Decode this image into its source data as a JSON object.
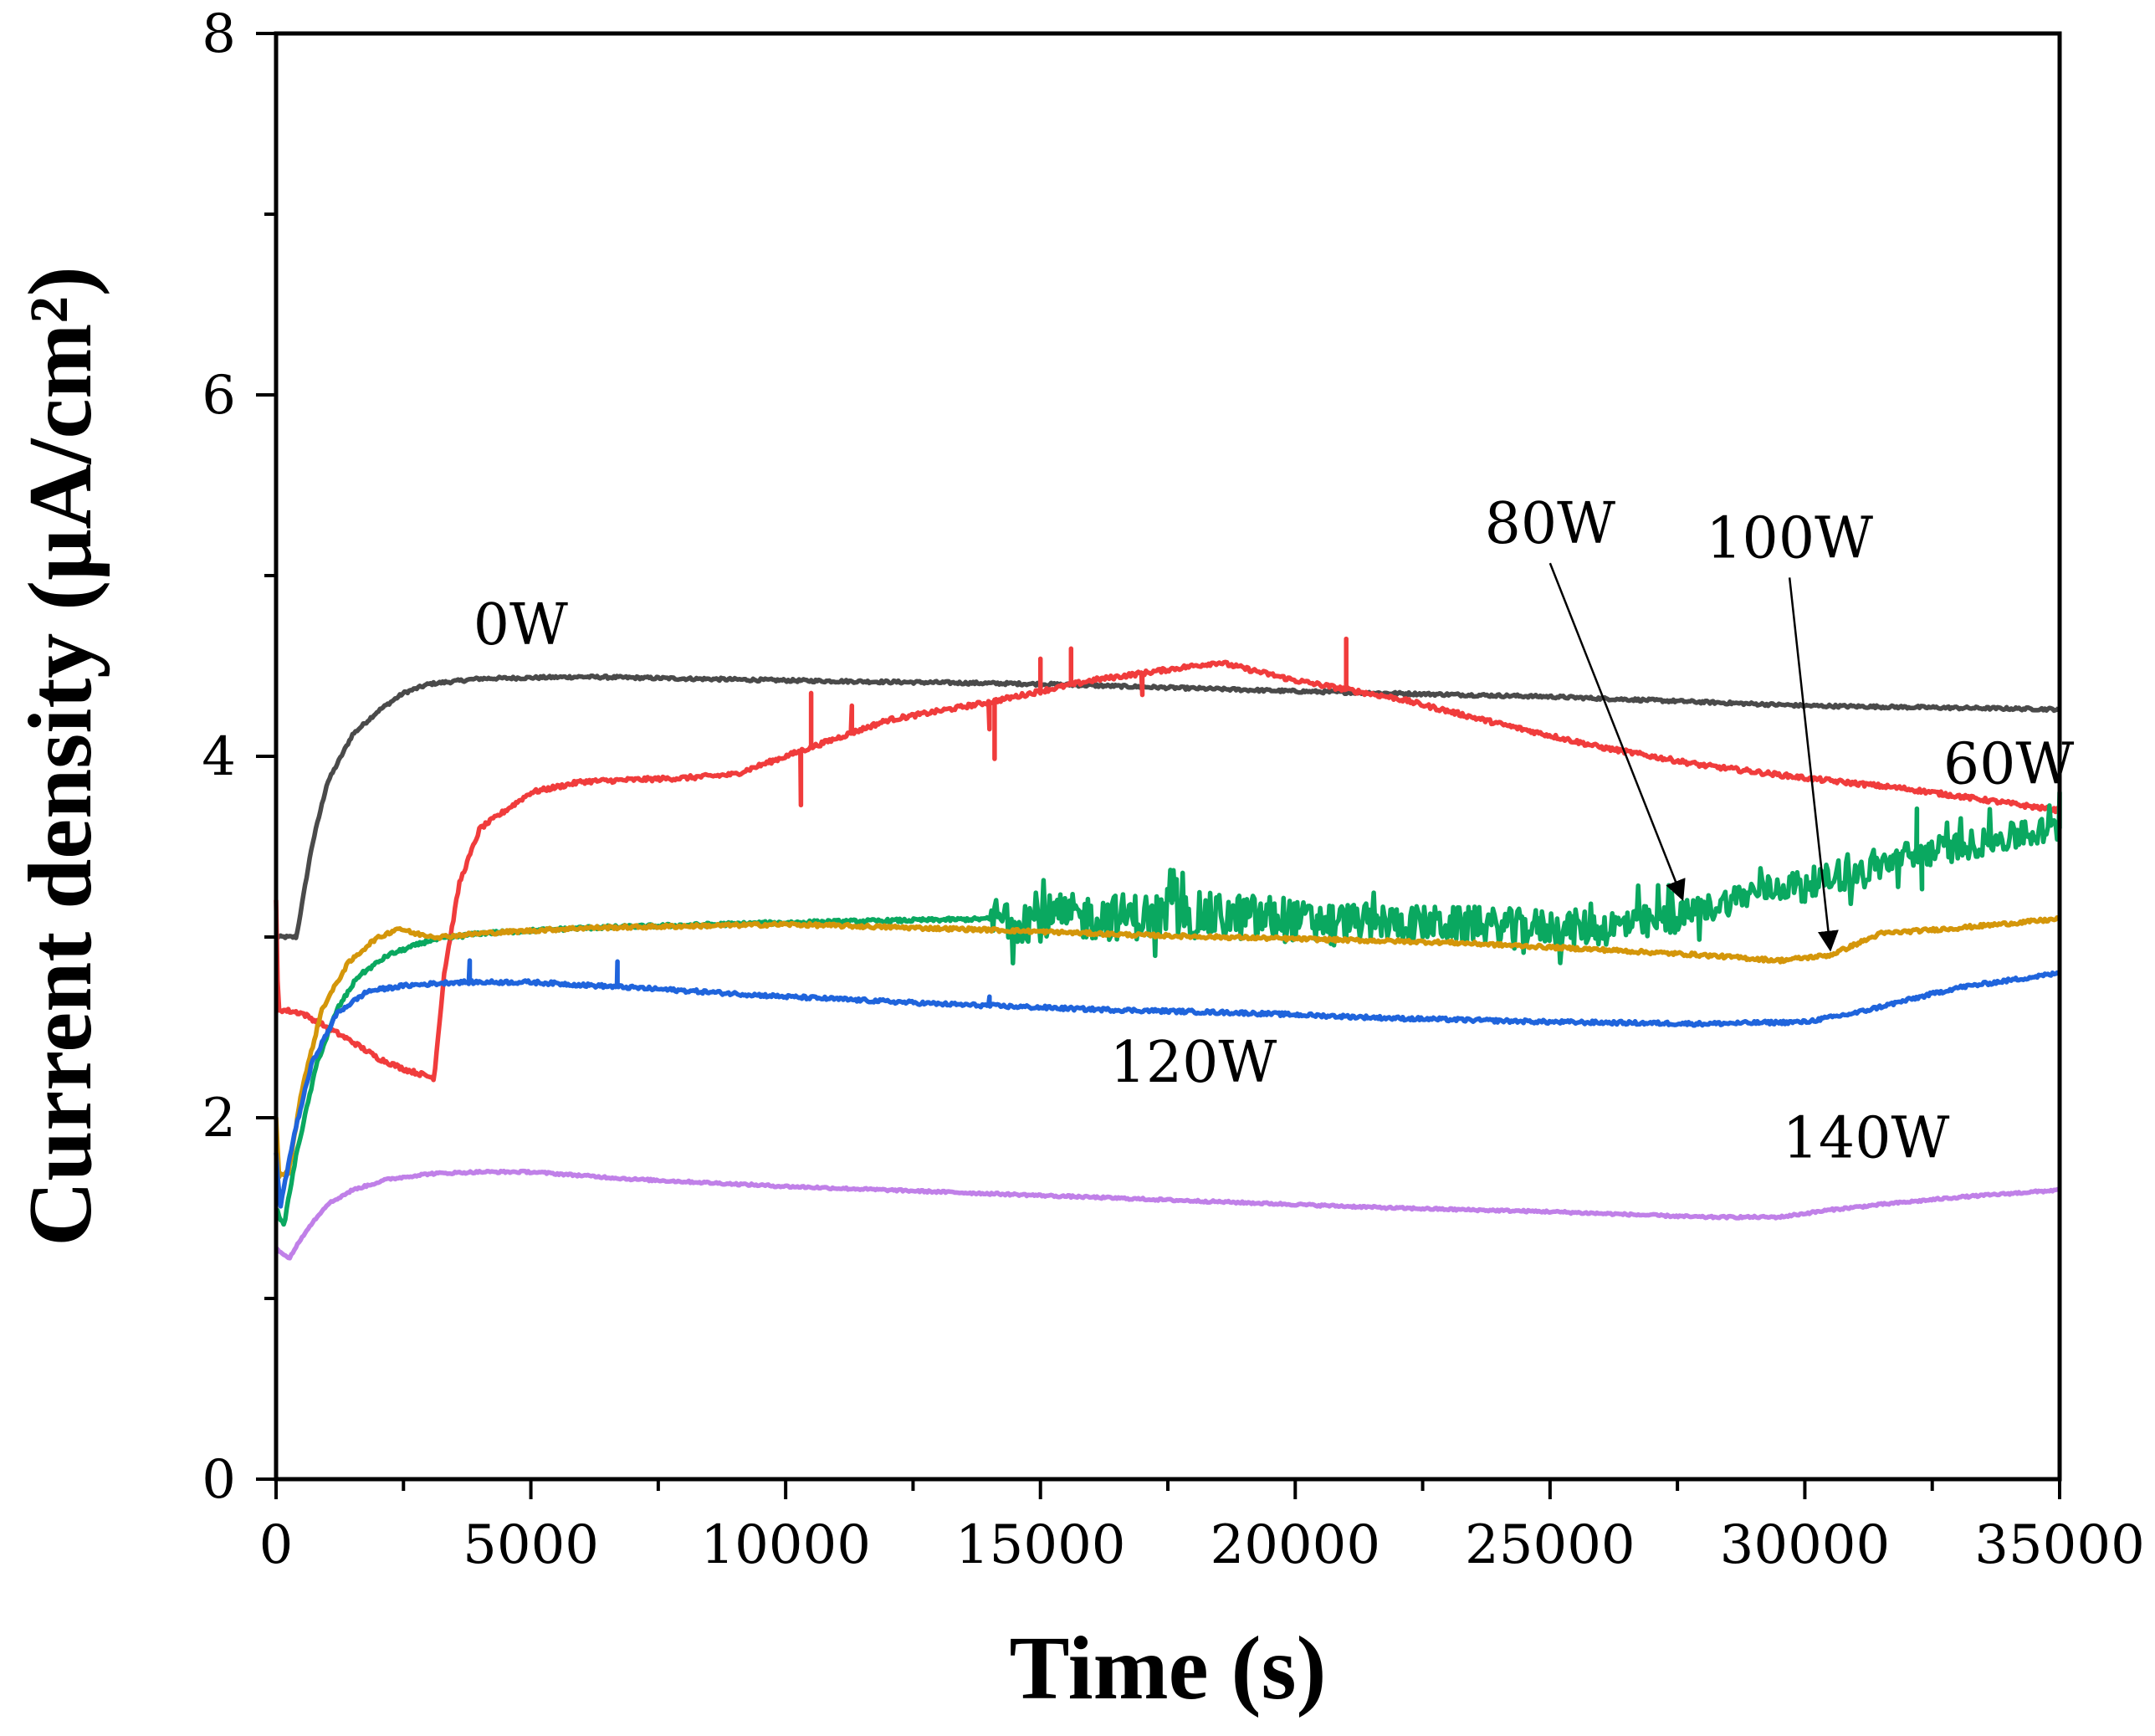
{
  "chart_data": {
    "type": "line",
    "title": "",
    "xlabel": "Time (s)",
    "ylabel": "Current density (μA/cm²)",
    "xlim": [
      0,
      35000
    ],
    "ylim": [
      0,
      8
    ],
    "xticks": [
      0,
      5000,
      10000,
      15000,
      20000,
      25000,
      30000,
      35000
    ],
    "yticks": [
      0,
      2,
      4,
      6,
      8
    ],
    "grid": false,
    "series": [
      {
        "name": "0W",
        "color": "#4a4a4a",
        "noise": 0.008,
        "points": [
          [
            0,
            3.0
          ],
          [
            400,
            3.0
          ],
          [
            700,
            3.5
          ],
          [
            1000,
            3.85
          ],
          [
            1500,
            4.12
          ],
          [
            2000,
            4.25
          ],
          [
            2500,
            4.35
          ],
          [
            3000,
            4.4
          ],
          [
            4000,
            4.43
          ],
          [
            6000,
            4.44
          ],
          [
            10000,
            4.42
          ],
          [
            15000,
            4.4
          ],
          [
            20000,
            4.36
          ],
          [
            25000,
            4.33
          ],
          [
            30000,
            4.28
          ],
          [
            35000,
            4.26
          ]
        ]
      },
      {
        "name": "60W",
        "color": "#f03c3c",
        "noise": 0.012,
        "points": [
          [
            0,
            3.2
          ],
          [
            40,
            2.6
          ],
          [
            500,
            2.58
          ],
          [
            1000,
            2.5
          ],
          [
            1500,
            2.42
          ],
          [
            2000,
            2.33
          ],
          [
            2500,
            2.27
          ],
          [
            3100,
            2.22
          ],
          [
            3300,
            2.8
          ],
          [
            3600,
            3.3
          ],
          [
            4000,
            3.6
          ],
          [
            5000,
            3.8
          ],
          [
            6000,
            3.86
          ],
          [
            7000,
            3.87
          ],
          [
            8000,
            3.88
          ],
          [
            9000,
            3.9
          ],
          [
            10000,
            4.0
          ],
          [
            12000,
            4.2
          ],
          [
            14000,
            4.3
          ],
          [
            16000,
            4.42
          ],
          [
            18500,
            4.52
          ],
          [
            20000,
            4.42
          ],
          [
            22000,
            4.32
          ],
          [
            24000,
            4.18
          ],
          [
            26000,
            4.05
          ],
          [
            28000,
            3.95
          ],
          [
            30000,
            3.88
          ],
          [
            32000,
            3.82
          ],
          [
            35000,
            3.7
          ]
        ],
        "spikes": [
          [
            10300,
            -0.3
          ],
          [
            10500,
            0.3
          ],
          [
            11300,
            0.15
          ],
          [
            14000,
            -0.15
          ],
          [
            14100,
            -0.32
          ],
          [
            15000,
            0.18
          ],
          [
            15600,
            0.2
          ],
          [
            17000,
            -0.12
          ],
          [
            21000,
            0.28
          ]
        ]
      },
      {
        "name": "80W",
        "color": "#0aa860",
        "noise": 0.01,
        "points": [
          [
            0,
            1.5
          ],
          [
            150,
            1.4
          ],
          [
            400,
            1.8
          ],
          [
            800,
            2.3
          ],
          [
            1200,
            2.6
          ],
          [
            1600,
            2.78
          ],
          [
            2200,
            2.9
          ],
          [
            3000,
            2.98
          ],
          [
            4000,
            3.02
          ],
          [
            6000,
            3.05
          ],
          [
            10000,
            3.08
          ],
          [
            14000,
            3.1
          ],
          [
            18000,
            3.12
          ],
          [
            20000,
            3.1
          ],
          [
            22000,
            3.08
          ],
          [
            24000,
            3.06
          ],
          [
            26000,
            3.05
          ],
          [
            27000,
            3.08
          ],
          [
            28000,
            3.15
          ],
          [
            29000,
            3.25
          ],
          [
            30000,
            3.3
          ],
          [
            31000,
            3.35
          ],
          [
            32000,
            3.45
          ],
          [
            33000,
            3.5
          ],
          [
            35000,
            3.6
          ]
        ],
        "noiseBands": [
          [
            14000,
            20000,
            0.13
          ],
          [
            20000,
            27500,
            0.1
          ],
          [
            27500,
            35000,
            0.08
          ]
        ],
        "spikes": [
          [
            32200,
            0.25
          ],
          [
            32300,
            -0.2
          ],
          [
            35000,
            0.2
          ]
        ]
      },
      {
        "name": "100W",
        "color": "#d4960a",
        "noise": 0.01,
        "points": [
          [
            0,
            2.0
          ],
          [
            60,
            1.68
          ],
          [
            250,
            1.7
          ],
          [
            500,
            2.15
          ],
          [
            900,
            2.6
          ],
          [
            1400,
            2.85
          ],
          [
            1900,
            2.98
          ],
          [
            2400,
            3.05
          ],
          [
            2700,
            3.02
          ],
          [
            3200,
            3.0
          ],
          [
            4000,
            3.02
          ],
          [
            6000,
            3.05
          ],
          [
            10000,
            3.07
          ],
          [
            14000,
            3.04
          ],
          [
            17000,
            3.01
          ],
          [
            20000,
            2.99
          ],
          [
            23000,
            2.97
          ],
          [
            26000,
            2.93
          ],
          [
            28000,
            2.9
          ],
          [
            29500,
            2.87
          ],
          [
            30500,
            2.9
          ],
          [
            31500,
            3.02
          ],
          [
            33000,
            3.05
          ],
          [
            35000,
            3.1
          ]
        ]
      },
      {
        "name": "120W",
        "color": "#1f64dc",
        "noise": 0.01,
        "points": [
          [
            0,
            1.8
          ],
          [
            80,
            1.5
          ],
          [
            350,
            1.9
          ],
          [
            700,
            2.3
          ],
          [
            1200,
            2.58
          ],
          [
            1800,
            2.7
          ],
          [
            2500,
            2.73
          ],
          [
            3500,
            2.75
          ],
          [
            5000,
            2.75
          ],
          [
            7000,
            2.72
          ],
          [
            10000,
            2.67
          ],
          [
            13000,
            2.63
          ],
          [
            16000,
            2.6
          ],
          [
            19000,
            2.58
          ],
          [
            22000,
            2.55
          ],
          [
            25000,
            2.53
          ],
          [
            28000,
            2.52
          ],
          [
            30000,
            2.53
          ],
          [
            31000,
            2.58
          ],
          [
            32000,
            2.65
          ],
          [
            33000,
            2.72
          ],
          [
            35000,
            2.8
          ]
        ],
        "spikes": [
          [
            3800,
            0.12
          ],
          [
            6700,
            0.14
          ],
          [
            14000,
            0.05
          ]
        ]
      },
      {
        "name": "140W",
        "color": "#c080e8",
        "noise": 0.006,
        "points": [
          [
            0,
            1.28
          ],
          [
            250,
            1.22
          ],
          [
            600,
            1.38
          ],
          [
            1000,
            1.52
          ],
          [
            1500,
            1.6
          ],
          [
            2200,
            1.66
          ],
          [
            3000,
            1.69
          ],
          [
            4000,
            1.7
          ],
          [
            5000,
            1.7
          ],
          [
            7000,
            1.66
          ],
          [
            10000,
            1.62
          ],
          [
            13000,
            1.59
          ],
          [
            16000,
            1.56
          ],
          [
            19000,
            1.53
          ],
          [
            22000,
            1.5
          ],
          [
            25000,
            1.48
          ],
          [
            28000,
            1.45
          ],
          [
            29500,
            1.45
          ],
          [
            30500,
            1.49
          ],
          [
            31500,
            1.52
          ],
          [
            33000,
            1.56
          ],
          [
            35000,
            1.6
          ]
        ]
      }
    ],
    "annotations": [
      {
        "text": "0W",
        "x": 4800,
        "y": 4.62
      },
      {
        "text": "60W",
        "x": 34000,
        "y": 3.85
      },
      {
        "text": "80W",
        "x": 25000,
        "y": 5.18,
        "arrow_to": [
          27600,
          3.21
        ]
      },
      {
        "text": "100W",
        "x": 29700,
        "y": 5.1,
        "arrow_to": [
          30500,
          2.93
        ]
      },
      {
        "text": "120W",
        "x": 18000,
        "y": 2.2
      },
      {
        "text": "140W",
        "x": 31200,
        "y": 1.78
      }
    ]
  }
}
